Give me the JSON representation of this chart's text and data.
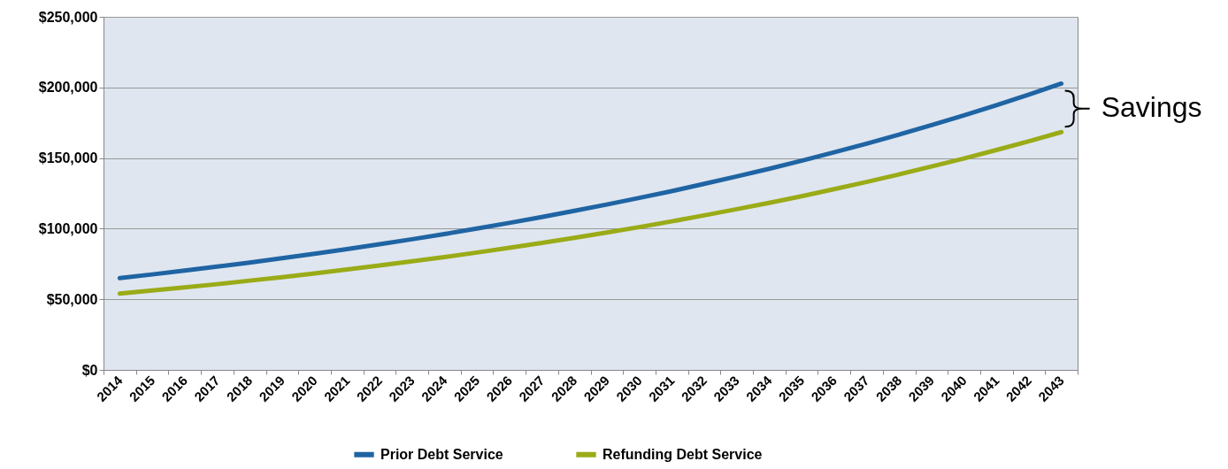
{
  "chart_data": {
    "type": "line",
    "categories": [
      "2014",
      "2015",
      "2016",
      "2017",
      "2018",
      "2019",
      "2020",
      "2021",
      "2022",
      "2023",
      "2024",
      "2025",
      "2026",
      "2027",
      "2028",
      "2029",
      "2030",
      "2031",
      "2032",
      "2033",
      "2034",
      "2035",
      "2036",
      "2037",
      "2038",
      "2039",
      "2040",
      "2041",
      "2042",
      "2043"
    ],
    "series": [
      {
        "name": "Prior Debt Service",
        "color": "#1f64a3",
        "values": [
          65000,
          67600,
          70300,
          73100,
          76000,
          79100,
          82200,
          85500,
          89000,
          92500,
          96200,
          100100,
          104100,
          108200,
          112600,
          117100,
          121800,
          126600,
          131700,
          137000,
          142400,
          148100,
          154100,
          160200,
          166600,
          173300,
          180200,
          187400,
          194900,
          202700
        ]
      },
      {
        "name": "Refunding Debt Service",
        "color": "#9aab17",
        "values": [
          54000,
          56200,
          58400,
          60700,
          63200,
          65700,
          68300,
          71100,
          73900,
          76900,
          79900,
          83100,
          86500,
          89900,
          93500,
          97300,
          101100,
          105200,
          109400,
          113800,
          118300,
          123000,
          128000,
          133100,
          138400,
          144000,
          149700,
          155700,
          161900,
          168400
        ]
      }
    ],
    "ylim": [
      0,
      250000
    ],
    "yticks": [
      {
        "value": 0,
        "label": "$0"
      },
      {
        "value": 50000,
        "label": "$50,000"
      },
      {
        "value": 100000,
        "label": "$100,000"
      },
      {
        "value": 150000,
        "label": "$150,000"
      },
      {
        "value": 200000,
        "label": "$200,000"
      },
      {
        "value": 250000,
        "label": "$250,000"
      }
    ],
    "grid": "y",
    "legend": "bottom",
    "line_style": "solid",
    "annotations": [
      "Savings"
    ]
  }
}
